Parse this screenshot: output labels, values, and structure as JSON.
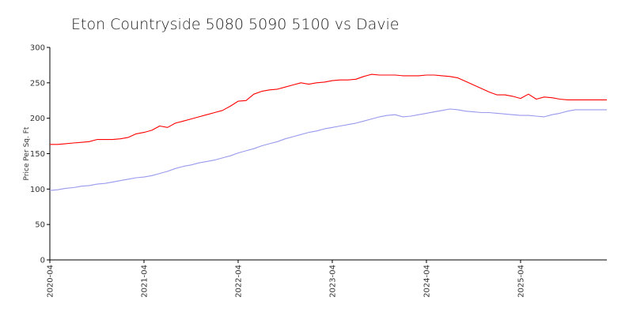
{
  "chart_data": {
    "type": "line",
    "title": "Eton Countryside 5080 5090 5100 vs Davie",
    "xlabel": "",
    "ylabel": "Price Per Sq. Ft",
    "ylim": [
      0,
      300
    ],
    "yticks": [
      0,
      50,
      100,
      150,
      200,
      250,
      300
    ],
    "xlim": [
      "2020-04",
      "2026-03"
    ],
    "xticks": [
      "2020-04",
      "2021-04",
      "2022-04",
      "2023-04",
      "2024-04",
      "2025-04"
    ],
    "x": [
      "2020-04",
      "2020-05",
      "2020-06",
      "2020-07",
      "2020-08",
      "2020-09",
      "2020-10",
      "2020-11",
      "2020-12",
      "2021-01",
      "2021-02",
      "2021-03",
      "2021-04",
      "2021-05",
      "2021-06",
      "2021-07",
      "2021-08",
      "2021-09",
      "2021-10",
      "2021-11",
      "2021-12",
      "2022-01",
      "2022-02",
      "2022-03",
      "2022-04",
      "2022-05",
      "2022-06",
      "2022-07",
      "2022-08",
      "2022-09",
      "2022-10",
      "2022-11",
      "2022-12",
      "2023-01",
      "2023-02",
      "2023-03",
      "2023-04",
      "2023-05",
      "2023-06",
      "2023-07",
      "2023-08",
      "2023-09",
      "2023-10",
      "2023-11",
      "2023-12",
      "2024-01",
      "2024-02",
      "2024-03",
      "2024-04",
      "2024-05",
      "2024-06",
      "2024-07",
      "2024-08",
      "2024-09",
      "2024-10",
      "2024-11",
      "2024-12",
      "2025-01",
      "2025-02",
      "2025-03",
      "2025-04",
      "2025-05",
      "2025-06",
      "2025-07",
      "2025-08",
      "2025-09",
      "2025-10",
      "2025-11",
      "2025-12",
      "2026-01",
      "2026-02",
      "2026-03"
    ],
    "series": [
      {
        "name": "Eton Countryside 5080 5090 5100",
        "color": "#ff0000",
        "values": [
          163,
          163,
          164,
          165,
          166,
          167,
          170,
          170,
          170,
          171,
          173,
          178,
          180,
          183,
          189,
          187,
          193,
          196,
          199,
          202,
          205,
          208,
          211,
          217,
          224,
          225,
          234,
          238,
          240,
          241,
          244,
          247,
          250,
          248,
          250,
          251,
          253,
          254,
          254,
          255,
          259,
          262,
          261,
          261,
          261,
          260,
          260,
          260,
          261,
          261,
          260,
          259,
          257,
          252,
          247,
          242,
          237,
          233,
          233,
          231,
          228,
          234,
          227,
          230,
          229,
          227,
          226,
          226,
          226,
          226,
          226,
          226
        ]
      },
      {
        "name": "Davie",
        "color": "#9999ee",
        "values": [
          98,
          99,
          101,
          102,
          104,
          105,
          107,
          108,
          110,
          112,
          114,
          116,
          117,
          119,
          122,
          125,
          129,
          132,
          134,
          137,
          139,
          141,
          144,
          147,
          151,
          154,
          157,
          161,
          164,
          167,
          171,
          174,
          177,
          180,
          182,
          185,
          187,
          189,
          191,
          193,
          196,
          199,
          202,
          204,
          205,
          202,
          203,
          205,
          207,
          209,
          211,
          213,
          212,
          210,
          209,
          208,
          208,
          207,
          206,
          205,
          204,
          204,
          203,
          202,
          205,
          207,
          210,
          212,
          212,
          212,
          212,
          212
        ]
      }
    ]
  }
}
